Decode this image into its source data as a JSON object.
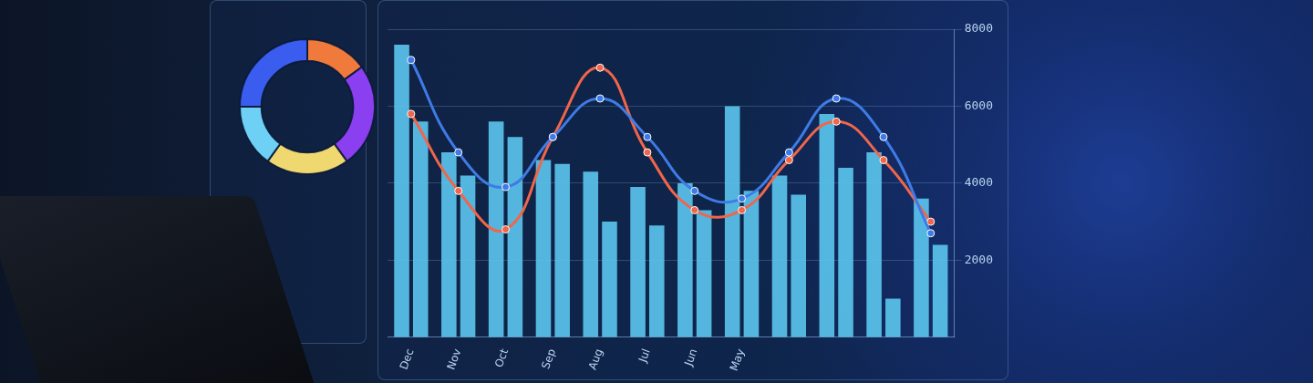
{
  "chart_data": [
    {
      "type": "doughnut",
      "values": [
        15,
        25,
        20,
        15,
        25
      ],
      "colors": [
        "#f07a3c",
        "#8a3ff0",
        "#f0d870",
        "#6fd0f5",
        "#3a5df0"
      ]
    },
    {
      "type": "bar",
      "categories": [
        "Dec",
        "Nov",
        "Oct",
        "Sep",
        "Aug",
        "Jul",
        "Jun",
        "May",
        null,
        null,
        null,
        null
      ],
      "series": [
        {
          "type": "bar",
          "color": "#5cc6ee",
          "values": [
            7600,
            4800,
            5600,
            4600,
            4300,
            3900,
            4000,
            6000,
            4200,
            5800,
            4800,
            3600
          ]
        },
        {
          "type": "bar",
          "color": "#5cc6ee",
          "values": [
            5600,
            4200,
            5200,
            4500,
            3000,
            2900,
            3300,
            3800,
            3700,
            4400,
            1000,
            2400
          ]
        },
        {
          "type": "line",
          "color": "#3f7be6",
          "marker": "circle",
          "values": [
            7200,
            4800,
            3900,
            5200,
            6200,
            5200,
            3800,
            3600,
            4800,
            6200,
            5200,
            2700
          ]
        },
        {
          "type": "line",
          "color": "#f0664a",
          "marker": "circle",
          "values": [
            5800,
            3800,
            2800,
            5200,
            7000,
            4800,
            3300,
            3300,
            4600,
            5600,
            4600,
            3000
          ]
        }
      ],
      "ylim": [
        0,
        8000
      ],
      "yticks": [
        2000,
        4000,
        6000,
        8000
      ],
      "grid": true
    }
  ]
}
